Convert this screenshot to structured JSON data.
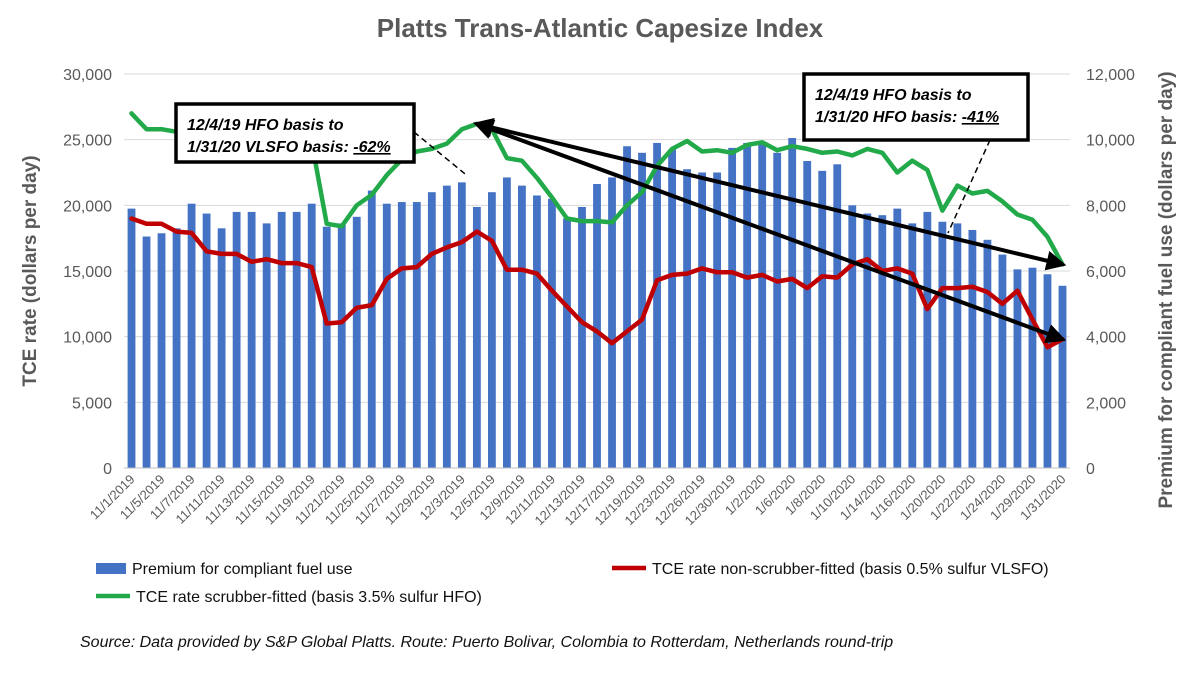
{
  "chart_data": {
    "type": "bar",
    "title": "Platts Trans-Atlantic Capesize Index",
    "ylabel": "TCE rate (dollars per day)",
    "y2label": "Premium for compliant fuel use (dollars per day)",
    "ylim": [
      0,
      30000
    ],
    "y2lim": [
      0,
      12000
    ],
    "yticks": [
      0,
      5000,
      10000,
      15000,
      20000,
      25000,
      30000
    ],
    "yticklabels": [
      "0",
      "5,000",
      "10,000",
      "15,000",
      "20,000",
      "25,000",
      "30,000"
    ],
    "y2ticks": [
      0,
      2000,
      4000,
      6000,
      8000,
      10000,
      12000
    ],
    "y2ticklabels": [
      "0",
      "2,000",
      "4,000",
      "6,000",
      "8,000",
      "10,000",
      "12,000"
    ],
    "grid": true,
    "categories": [
      "11/1/2019",
      "11/4/2019",
      "11/5/2019",
      "11/6/2019",
      "11/7/2019",
      "11/8/2019",
      "11/11/2019",
      "11/12/2019",
      "11/13/2019",
      "11/14/2019",
      "11/15/2019",
      "11/18/2019",
      "11/19/2019",
      "11/20/2019",
      "11/21/2019",
      "11/22/2019",
      "11/25/2019",
      "11/26/2019",
      "11/27/2019",
      "11/28/2019",
      "11/29/2019",
      "12/2/2019",
      "12/3/2019",
      "12/4/2019",
      "12/5/2019",
      "12/6/2019",
      "12/9/2019",
      "12/10/2019",
      "12/11/2019",
      "12/12/2019",
      "12/13/2019",
      "12/16/2019",
      "12/17/2019",
      "12/18/2019",
      "12/19/2019",
      "12/20/2019",
      "12/23/2019",
      "12/24/2019",
      "12/26/2019",
      "12/27/2019",
      "12/30/2019",
      "12/31/2019",
      "1/2/2020",
      "1/3/2020",
      "1/6/2020",
      "1/7/2020",
      "1/8/2020",
      "1/9/2020",
      "1/10/2020",
      "1/13/2020",
      "1/14/2020",
      "1/15/2020",
      "1/16/2020",
      "1/17/2020",
      "1/20/2020",
      "1/21/2020",
      "1/22/2020",
      "1/23/2020",
      "1/24/2020",
      "1/27/2020",
      "1/29/2020",
      "1/30/2020",
      "1/31/2020"
    ],
    "xticklabels": [
      "11/1/2019",
      "11/5/2019",
      "11/7/2019",
      "11/11/2019",
      "11/13/2019",
      "11/15/2019",
      "11/19/2019",
      "11/21/2019",
      "11/25/2019",
      "11/27/2019",
      "11/29/2019",
      "12/3/2019",
      "12/5/2019",
      "12/9/2019",
      "12/11/2019",
      "12/13/2019",
      "12/17/2019",
      "12/19/2019",
      "12/23/2019",
      "12/26/2019",
      "12/30/2019",
      "1/2/2020",
      "1/6/2020",
      "1/8/2020",
      "1/10/2020",
      "1/14/2020",
      "1/16/2020",
      "1/20/2020",
      "1/22/2020",
      "1/24/2020",
      "1/29/2020",
      "1/31/2020"
    ],
    "series": [
      {
        "name": "Premium for compliant fuel use",
        "kind": "bar",
        "axis": "right",
        "color": "#4472c4",
        "values": [
          7900,
          7050,
          7150,
          7300,
          8050,
          7750,
          7300,
          7800,
          7800,
          7450,
          7800,
          7800,
          8050,
          7350,
          7450,
          7650,
          8450,
          8050,
          8100,
          8100,
          8400,
          8600,
          8700,
          7950,
          8400,
          8850,
          8600,
          8300,
          8200,
          7600,
          7950,
          8650,
          8850,
          9800,
          9600,
          9900,
          9700,
          9100,
          9000,
          9000,
          9750,
          9900,
          9900,
          9600,
          10050,
          9350,
          9050,
          9250,
          8000,
          7750,
          7700,
          7900,
          7450,
          7800,
          7500,
          7450,
          7250,
          6950,
          6500,
          6050,
          6100,
          5900,
          5550
        ]
      },
      {
        "name": "TCE rate non-scrubber-fitted (basis 0.5% sulfur VLSFO)",
        "kind": "line",
        "axis": "left",
        "color": "#c00000",
        "values": [
          19000,
          18600,
          18600,
          18000,
          17900,
          16500,
          16300,
          16300,
          15700,
          15900,
          15600,
          15600,
          15300,
          11000,
          11100,
          12200,
          12400,
          14400,
          15200,
          15300,
          16300,
          16800,
          17200,
          18000,
          17300,
          15100,
          15100,
          14800,
          13500,
          12300,
          11100,
          10400,
          9500,
          10400,
          11300,
          14300,
          14700,
          14800,
          15200,
          14900,
          14900,
          14500,
          14700,
          14200,
          14400,
          13700,
          14600,
          14500,
          15500,
          15900,
          15000,
          15200,
          14800,
          12100,
          13700,
          13700,
          13800,
          13400,
          12500,
          13500,
          11300,
          9200,
          9800
        ]
      },
      {
        "name": "TCE rate scrubber-fitted (basis 3.5% sulfur HFO)",
        "kind": "line",
        "axis": "left",
        "color": "#22a94a",
        "values": [
          27000,
          25800,
          25800,
          25600,
          25300,
          25700,
          25600,
          25500,
          25200,
          25300,
          25400,
          25300,
          24800,
          18600,
          18400,
          20000,
          20800,
          22300,
          23500,
          24100,
          24300,
          24700,
          25800,
          26200,
          25800,
          23600,
          23400,
          22100,
          20600,
          19000,
          18800,
          18800,
          18700,
          20000,
          21000,
          23000,
          24300,
          24900,
          24100,
          24200,
          24000,
          24600,
          24800,
          24200,
          24500,
          24300,
          24000,
          24100,
          23800,
          24300,
          24000,
          22500,
          23400,
          22700,
          19600,
          21500,
          20900,
          21100,
          20300,
          19300,
          18900,
          17600,
          15500
        ]
      }
    ],
    "annotations": [
      {
        "name": "left-callout",
        "line1": "12/4/19 HFO basis to",
        "line2_prefix": "1/31/20 VLSFO basis: ",
        "line2_value": "-62%"
      },
      {
        "name": "right-callout",
        "line1": "12/4/19 HFO basis to",
        "line2_prefix": "1/31/20 HFO basis: ",
        "line2_value": "-41%"
      }
    ],
    "arrows": [
      {
        "from_index": 23,
        "from_value": 26200,
        "to_index": 62,
        "to_value": 15500
      },
      {
        "from_index": 23,
        "from_value": 26200,
        "to_index": 62,
        "to_value": 9800
      }
    ],
    "legend": "bottom"
  },
  "source_note": "Source: Data provided by S&P Global Platts. Route: Puerto Bolivar, Colombia to Rotterdam, Netherlands round-trip",
  "colors": {
    "axis_text": "#595959",
    "grid": "#d9d9d9",
    "title": "#595959"
  }
}
